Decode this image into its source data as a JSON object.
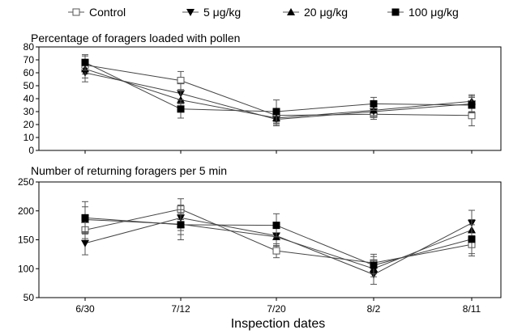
{
  "chart_data": [
    {
      "type": "line",
      "title": "Percentage of foragers loaded with pollen",
      "categories": [
        "6/30",
        "7/12",
        "7/20",
        "8/2",
        "8/11"
      ],
      "ylim": [
        0,
        80
      ],
      "yticks": [
        0,
        10,
        20,
        30,
        40,
        50,
        60,
        70,
        80
      ],
      "series": [
        {
          "name": "Control",
          "values": [
            66,
            54,
            27,
            28,
            27
          ],
          "errors": [
            7,
            7,
            5,
            4,
            8
          ],
          "marker": "open-square"
        },
        {
          "name": "5 μg/kg",
          "values": [
            60,
            44,
            24,
            30,
            36
          ],
          "errors": [
            7,
            8,
            5,
            4,
            6
          ],
          "marker": "down-triangle"
        },
        {
          "name": "20 μg/kg",
          "values": [
            63,
            39,
            25,
            31,
            38
          ],
          "errors": [
            7,
            7,
            5,
            4,
            5
          ],
          "marker": "up-triangle"
        },
        {
          "name": "100 μg/kg",
          "values": [
            68,
            32,
            30,
            36,
            35
          ],
          "errors": [
            6,
            7,
            9,
            5,
            6
          ],
          "marker": "filled-square"
        }
      ]
    },
    {
      "type": "line",
      "title": "Number of returning foragers per 5 min",
      "categories": [
        "6/30",
        "7/12",
        "7/20",
        "8/2",
        "8/11"
      ],
      "xlabel": "Inspection dates",
      "ylim": [
        50,
        250
      ],
      "yticks": [
        50,
        100,
        150,
        200,
        250
      ],
      "series": [
        {
          "name": "Control",
          "values": [
            167,
            203,
            131,
            110,
            142
          ],
          "errors": [
            15,
            18,
            12,
            15,
            20
          ],
          "marker": "open-square"
        },
        {
          "name": "5 μg/kg",
          "values": [
            144,
            188,
            157,
            90,
            179
          ],
          "errors": [
            20,
            22,
            18,
            17,
            22
          ],
          "marker": "down-triangle"
        },
        {
          "name": "20 μg/kg",
          "values": [
            185,
            177,
            155,
            100,
            167
          ],
          "errors": [
            22,
            18,
            15,
            14,
            18
          ],
          "marker": "up-triangle"
        },
        {
          "name": "100 μg/kg",
          "values": [
            188,
            176,
            175,
            106,
            151
          ],
          "errors": [
            28,
            26,
            20,
            15,
            25
          ],
          "marker": "filled-square"
        }
      ]
    }
  ]
}
